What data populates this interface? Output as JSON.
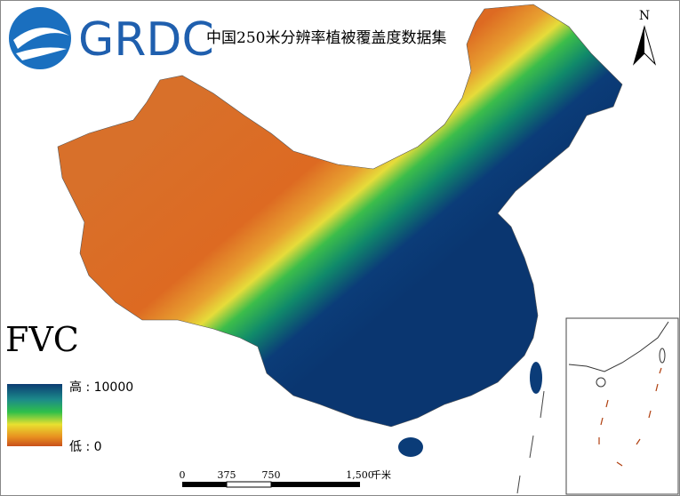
{
  "logo": "GRDC",
  "title": "中国250米分辨率植被覆盖度数据集",
  "north": "N",
  "legend": {
    "title": "FVC",
    "high": "高 : 10000",
    "low": "低 : 0"
  },
  "scale": {
    "ticks": [
      "0",
      "375",
      "750",
      "1,500"
    ],
    "unit": "千米"
  }
}
